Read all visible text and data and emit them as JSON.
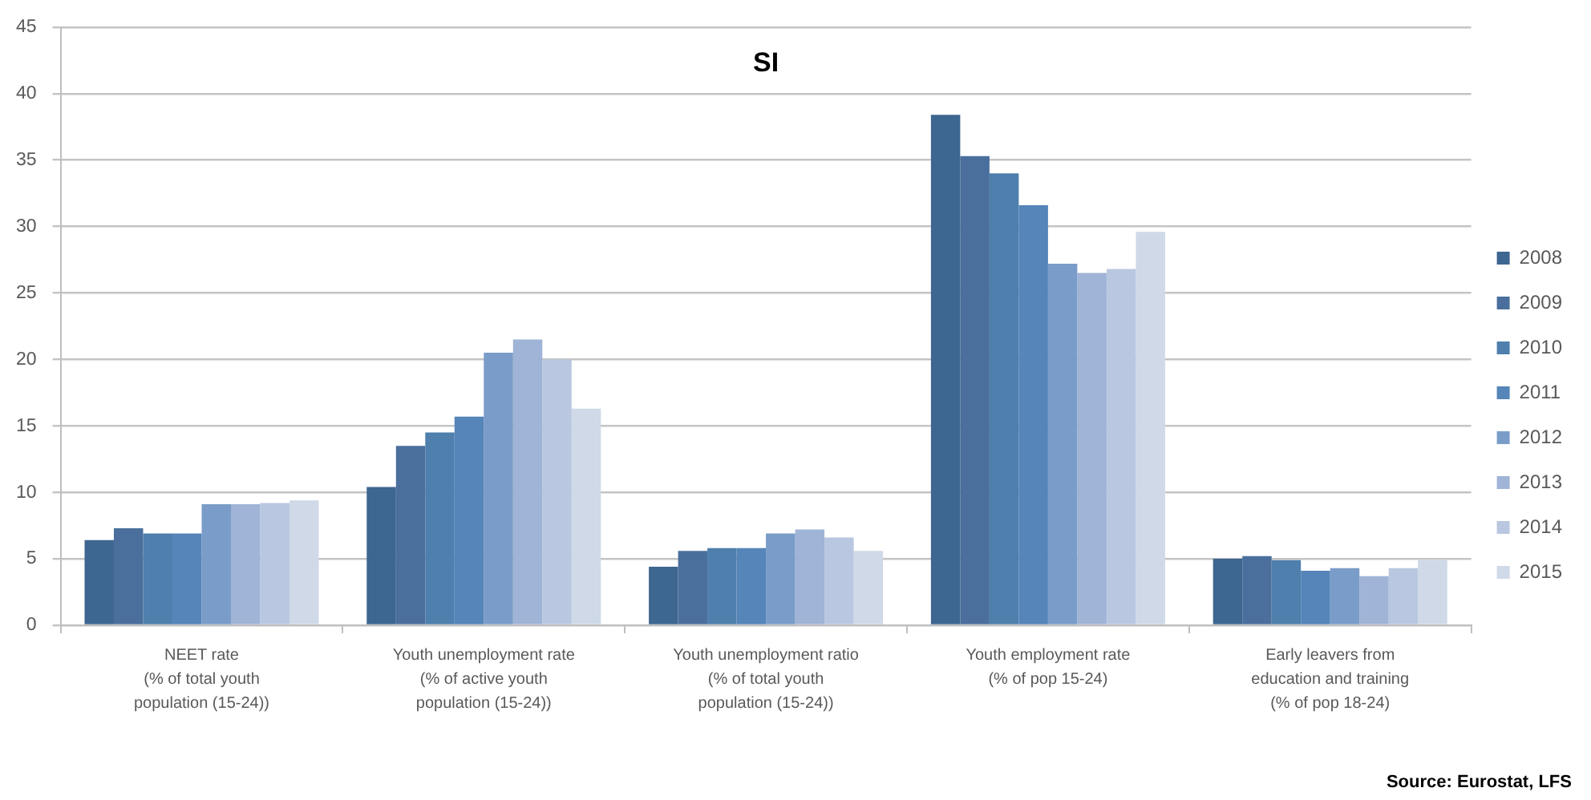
{
  "chart_data": {
    "type": "bar",
    "title": "SI",
    "categories": [
      "NEET rate\n(% of total youth\npopulation (15-24))",
      "Youth unemployment rate\n(% of active youth\npopulation (15-24))",
      "Youth unemployment ratio\n(% of total youth\npopulation (15-24))",
      "Youth employment rate\n(% of pop 15-24)",
      "Early leavers from\neducation and training\n(% of pop 18-24)"
    ],
    "series": [
      {
        "name": "2008",
        "color": "#3d6690",
        "values": [
          6.4,
          10.4,
          4.4,
          38.4,
          5.0
        ]
      },
      {
        "name": "2009",
        "color": "#4a6f9c",
        "values": [
          7.3,
          13.5,
          5.6,
          35.3,
          5.2
        ]
      },
      {
        "name": "2010",
        "color": "#4e7fad",
        "values": [
          6.9,
          14.5,
          5.8,
          34.0,
          4.9
        ]
      },
      {
        "name": "2011",
        "color": "#5585b9",
        "values": [
          6.9,
          15.7,
          5.8,
          31.6,
          4.1
        ]
      },
      {
        "name": "2012",
        "color": "#7a9cc8",
        "values": [
          9.1,
          20.5,
          6.9,
          27.2,
          4.3
        ]
      },
      {
        "name": "2013",
        "color": "#9fb4d6",
        "values": [
          9.1,
          21.5,
          7.2,
          26.5,
          3.7
        ]
      },
      {
        "name": "2014",
        "color": "#b9c8e0",
        "values": [
          9.2,
          20.0,
          6.6,
          26.8,
          4.3
        ]
      },
      {
        "name": "2015",
        "color": "#cfd9e8",
        "values": [
          9.4,
          16.3,
          5.6,
          29.6,
          4.9
        ]
      }
    ],
    "ylim": [
      0,
      45
    ],
    "yticks": [
      0,
      5,
      10,
      15,
      20,
      25,
      30,
      35,
      40,
      45
    ],
    "grid": "y",
    "legend": "right",
    "annotations": [
      "Source: Eurostat, LFS"
    ]
  }
}
